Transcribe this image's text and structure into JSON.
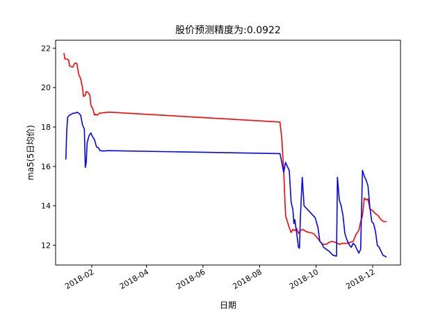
{
  "chart_data": {
    "type": "line",
    "title": "股价预测精度为:0.0922",
    "xlabel": "日期",
    "ylabel": "ma5(5日均价)",
    "ylim": [
      11.0,
      22.4
    ],
    "yticks": [
      12,
      14,
      16,
      18,
      20,
      22
    ],
    "xlim": [
      "2017-12-24",
      "2018-12-31"
    ],
    "xticks": [
      {
        "date": "2018-02-01",
        "label": "2018-02"
      },
      {
        "date": "2018-04-01",
        "label": "2018-04"
      },
      {
        "date": "2018-06-01",
        "label": "2018-06"
      },
      {
        "date": "2018-08-01",
        "label": "2018-08"
      },
      {
        "date": "2018-10-01",
        "label": "2018-10"
      },
      {
        "date": "2018-12-01",
        "label": "2018-12"
      }
    ],
    "grid": false,
    "series": [
      {
        "color": "#ff0000",
        "points": [
          [
            "2018-01-02",
            21.75
          ],
          [
            "2018-01-03",
            21.45
          ],
          [
            "2018-01-05",
            21.45
          ],
          [
            "2018-01-07",
            21.4
          ],
          [
            "2018-01-08",
            21.1
          ],
          [
            "2018-01-10",
            21.05
          ],
          [
            "2018-01-12",
            21.05
          ],
          [
            "2018-01-13",
            21.2
          ],
          [
            "2018-01-15",
            21.25
          ],
          [
            "2018-01-16",
            21.2
          ],
          [
            "2018-01-18",
            20.65
          ],
          [
            "2018-01-20",
            20.45
          ],
          [
            "2018-01-22",
            20.0
          ],
          [
            "2018-01-23",
            19.55
          ],
          [
            "2018-01-25",
            19.6
          ],
          [
            "2018-01-26",
            19.8
          ],
          [
            "2018-01-28",
            19.75
          ],
          [
            "2018-01-30",
            19.6
          ],
          [
            "2018-01-31",
            19.1
          ],
          [
            "2018-02-02",
            18.95
          ],
          [
            "2018-02-04",
            18.6
          ],
          [
            "2018-02-05",
            18.65
          ],
          [
            "2018-02-07",
            18.6
          ],
          [
            "2018-02-09",
            18.7
          ],
          [
            "2018-02-13",
            18.72
          ],
          [
            "2018-02-20",
            18.75
          ],
          [
            "2018-08-23",
            18.25
          ],
          [
            "2018-08-25",
            17.4
          ],
          [
            "2018-08-27",
            15.8
          ],
          [
            "2018-08-29",
            13.5
          ],
          [
            "2018-09-02",
            12.9
          ],
          [
            "2018-09-04",
            12.65
          ],
          [
            "2018-09-06",
            12.8
          ],
          [
            "2018-09-08",
            12.75
          ],
          [
            "2018-09-10",
            12.85
          ],
          [
            "2018-09-12",
            12.6
          ],
          [
            "2018-09-14",
            12.75
          ],
          [
            "2018-09-17",
            12.8
          ],
          [
            "2018-09-20",
            12.7
          ],
          [
            "2018-09-24",
            12.65
          ],
          [
            "2018-09-28",
            12.6
          ],
          [
            "2018-10-02",
            12.4
          ],
          [
            "2018-10-05",
            12.2
          ],
          [
            "2018-10-08",
            12.05
          ],
          [
            "2018-10-12",
            12.05
          ],
          [
            "2018-10-15",
            12.15
          ],
          [
            "2018-10-18",
            12.2
          ],
          [
            "2018-10-22",
            12.15
          ],
          [
            "2018-10-26",
            12.05
          ],
          [
            "2018-10-30",
            12.1
          ],
          [
            "2018-11-03",
            12.1
          ],
          [
            "2018-11-07",
            12.15
          ],
          [
            "2018-11-10",
            12.2
          ],
          [
            "2018-11-13",
            12.55
          ],
          [
            "2018-11-16",
            12.75
          ],
          [
            "2018-11-18",
            13.2
          ],
          [
            "2018-11-20",
            13.5
          ],
          [
            "2018-11-22",
            14.4
          ],
          [
            "2018-11-24",
            14.3
          ],
          [
            "2018-11-26",
            14.35
          ],
          [
            "2018-11-28",
            13.85
          ],
          [
            "2018-12-01",
            13.75
          ],
          [
            "2018-12-04",
            13.6
          ],
          [
            "2018-12-07",
            13.5
          ],
          [
            "2018-12-10",
            13.3
          ],
          [
            "2018-12-13",
            13.2
          ],
          [
            "2018-12-16",
            13.2
          ]
        ]
      },
      {
        "color": "#0000ff",
        "points": [
          [
            "2018-01-04",
            16.35
          ],
          [
            "2018-01-05",
            17.8
          ],
          [
            "2018-01-06",
            18.5
          ],
          [
            "2018-01-08",
            18.6
          ],
          [
            "2018-01-10",
            18.65
          ],
          [
            "2018-01-12",
            18.7
          ],
          [
            "2018-01-14",
            18.7
          ],
          [
            "2018-01-16",
            18.75
          ],
          [
            "2018-01-18",
            18.7
          ],
          [
            "2018-01-20",
            18.6
          ],
          [
            "2018-01-22",
            18.1
          ],
          [
            "2018-01-24",
            17.9
          ],
          [
            "2018-01-25",
            15.95
          ],
          [
            "2018-01-26",
            16.2
          ],
          [
            "2018-01-27",
            17.2
          ],
          [
            "2018-01-29",
            17.55
          ],
          [
            "2018-01-31",
            17.7
          ],
          [
            "2018-02-02",
            17.5
          ],
          [
            "2018-02-04",
            17.35
          ],
          [
            "2018-02-06",
            17.0
          ],
          [
            "2018-02-08",
            16.95
          ],
          [
            "2018-02-10",
            16.8
          ],
          [
            "2018-02-14",
            16.78
          ],
          [
            "2018-02-18",
            16.8
          ],
          [
            "2018-02-20",
            16.8
          ],
          [
            "2018-08-23",
            16.65
          ],
          [
            "2018-08-25",
            16.2
          ],
          [
            "2018-08-27",
            15.7
          ],
          [
            "2018-08-29",
            16.2
          ],
          [
            "2018-08-31",
            16.0
          ],
          [
            "2018-09-02",
            15.8
          ],
          [
            "2018-09-04",
            14.2
          ],
          [
            "2018-09-06",
            13.8
          ],
          [
            "2018-09-07",
            13.1
          ],
          [
            "2018-09-08",
            13.3
          ],
          [
            "2018-09-10",
            12.6
          ],
          [
            "2018-09-12",
            11.9
          ],
          [
            "2018-09-13",
            11.85
          ],
          [
            "2018-09-14",
            13.4
          ],
          [
            "2018-09-16",
            15.45
          ],
          [
            "2018-09-18",
            14.0
          ],
          [
            "2018-09-22",
            13.8
          ],
          [
            "2018-09-26",
            13.6
          ],
          [
            "2018-09-30",
            13.4
          ],
          [
            "2018-10-03",
            12.9
          ],
          [
            "2018-10-05",
            12.2
          ],
          [
            "2018-10-07",
            12.1
          ],
          [
            "2018-10-09",
            11.9
          ],
          [
            "2018-10-12",
            11.8
          ],
          [
            "2018-10-15",
            11.7
          ],
          [
            "2018-10-17",
            11.6
          ],
          [
            "2018-10-19",
            11.5
          ],
          [
            "2018-10-23",
            11.45
          ],
          [
            "2018-10-24",
            15.45
          ],
          [
            "2018-10-26",
            14.3
          ],
          [
            "2018-10-28",
            14.0
          ],
          [
            "2018-10-30",
            13.5
          ],
          [
            "2018-11-01",
            12.6
          ],
          [
            "2018-11-03",
            12.3
          ],
          [
            "2018-11-06",
            12.0
          ],
          [
            "2018-11-08",
            11.9
          ],
          [
            "2018-11-10",
            12.1
          ],
          [
            "2018-11-12",
            12.0
          ],
          [
            "2018-11-14",
            11.8
          ],
          [
            "2018-11-16",
            11.6
          ],
          [
            "2018-11-18",
            11.8
          ],
          [
            "2018-11-20",
            15.8
          ],
          [
            "2018-11-22",
            15.5
          ],
          [
            "2018-11-24",
            15.3
          ],
          [
            "2018-11-26",
            15.0
          ],
          [
            "2018-11-28",
            13.9
          ],
          [
            "2018-11-30",
            13.2
          ],
          [
            "2018-12-02",
            13.1
          ],
          [
            "2018-12-04",
            12.7
          ],
          [
            "2018-12-06",
            12.0
          ],
          [
            "2018-12-08",
            11.9
          ],
          [
            "2018-12-10",
            11.7
          ],
          [
            "2018-12-12",
            11.5
          ],
          [
            "2018-12-14",
            11.45
          ],
          [
            "2018-12-16",
            11.4
          ]
        ]
      }
    ]
  }
}
